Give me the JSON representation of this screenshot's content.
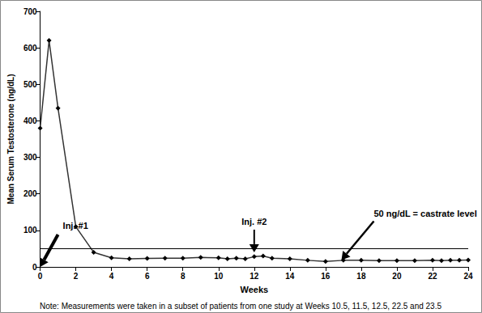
{
  "chart_data": {
    "type": "line",
    "y_label": "Mean Serum Testosterone (ng/dL)",
    "x_label": "Weeks",
    "note": "Note: Measurements were taken in a subset of patients from one study at Weeks 10.5, 11.5, 12.5, 22.5 and 23.5",
    "x": [
      0,
      0.5,
      1,
      2,
      3,
      4,
      5,
      6,
      7,
      8,
      9,
      10,
      10.5,
      11,
      11.5,
      12,
      12.5,
      13,
      14,
      15,
      16,
      17,
      18,
      19,
      20,
      21,
      22,
      22.5,
      23,
      23.5,
      24
    ],
    "values": [
      380,
      620,
      435,
      110,
      40,
      25,
      22,
      23,
      24,
      24,
      26,
      25,
      22,
      24,
      22,
      28,
      30,
      24,
      22,
      18,
      15,
      18,
      18,
      17,
      17,
      17,
      18,
      17,
      18,
      18,
      19
    ],
    "color": "#333333",
    "marker": "diamond",
    "line_style": "solid",
    "xlim": [
      0,
      24
    ],
    "xticks": [
      0,
      2,
      4,
      6,
      8,
      10,
      12,
      14,
      16,
      18,
      20,
      22,
      24
    ],
    "ylim": [
      0,
      700
    ],
    "yticks": [
      0,
      100,
      200,
      300,
      400,
      500,
      600,
      700
    ],
    "grid": false,
    "reference_line": {
      "value": 50,
      "label": "50 ng/dL = castrate level"
    },
    "annotations": [
      {
        "text": "Inj. #1",
        "x": 0,
        "y": 0
      },
      {
        "text": "Inj. #2",
        "x": 12,
        "y": 40
      }
    ]
  }
}
